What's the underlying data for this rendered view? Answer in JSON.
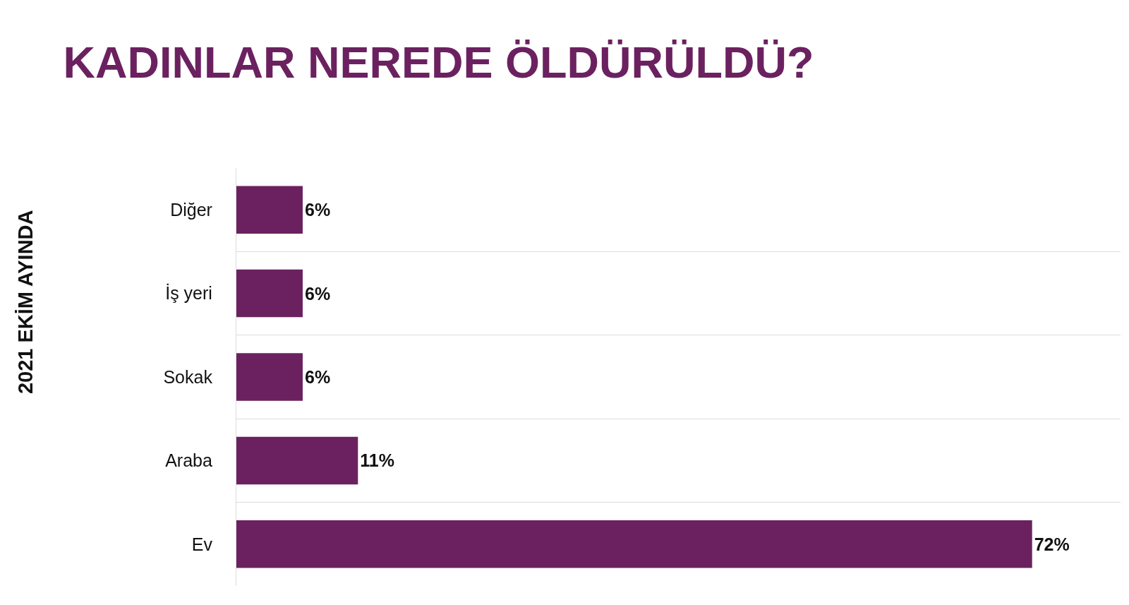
{
  "chart_data": {
    "type": "bar",
    "orientation": "horizontal",
    "title": "KADINLAR NEREDE ÖLDÜRÜLDÜ?",
    "annotations": [
      "2021 EKİM AYINDA"
    ],
    "categories": [
      "Diğer",
      "İş yeri",
      "Sokak",
      "Araba",
      "Ev"
    ],
    "values": [
      6,
      6,
      6,
      11,
      72
    ],
    "value_labels": [
      "6%",
      "6%",
      "6%",
      "11%",
      "72%"
    ],
    "color": "#6b2160",
    "xlim": [
      0,
      80
    ],
    "grid": "y",
    "tick_labels": "y"
  }
}
